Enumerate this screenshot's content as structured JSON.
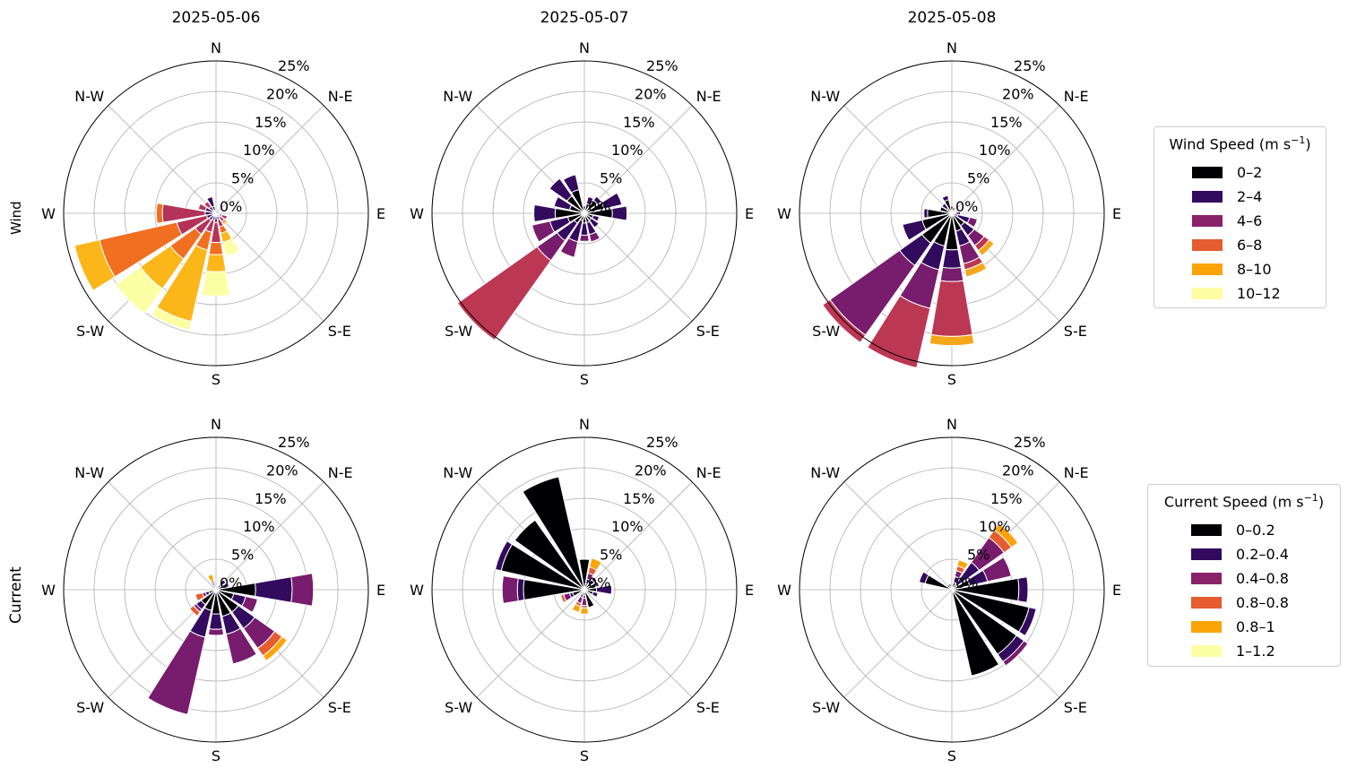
{
  "chart_data": {
    "type": "windrose",
    "panels_layout": "2 rows x 3 columns",
    "radial_ticks": [
      "0%",
      "5%",
      "10%",
      "15%",
      "20%",
      "25%"
    ],
    "rmax": 25,
    "direction_labels": [
      "N",
      "N-E",
      "E",
      "S-E",
      "S",
      "S-W",
      "W",
      "N-W"
    ],
    "sectors": 16,
    "grid": true,
    "columns": [
      "2025-05-06",
      "2025-05-07",
      "2025-05-08"
    ],
    "rows": [
      {
        "label": "Wind",
        "legend": {
          "title": "Wind Speed (m s",
          "title_sup": "−1",
          "title_end": ")",
          "bins": [
            "0–2",
            "2–4",
            "4–6",
            "6–8",
            "8–10",
            "10–12"
          ],
          "colors": [
            "#000004",
            "#320a5e",
            "#8a226a",
            "#e55c30",
            "#fba40a",
            "#fcffa4"
          ],
          "placement": "right"
        },
        "panels": [
          {
            "title": "2025-05-06",
            "colors": [
              "#000004",
              "#320a5e",
              "#b43359",
              "#f06f20",
              "#fbb61a",
              "#fcffa4"
            ],
            "sectors": [
              {
                "dir": 0,
                "stacks": []
              },
              {
                "dir": 22.5,
                "stacks": []
              },
              {
                "dir": 45,
                "stacks": []
              },
              {
                "dir": 67.5,
                "stacks": []
              },
              {
                "dir": 90,
                "stacks": []
              },
              {
                "dir": 112.5,
                "stacks": [
                  0.6,
                  0.4,
                  0.9
                ]
              },
              {
                "dir": 135,
                "stacks": [
                  0.4,
                  0.3,
                  1.0,
                  0.4,
                  0.3
                ]
              },
              {
                "dir": 157.5,
                "stacks": [
                  0.5,
                  0.6,
                  1.2,
                  1.1,
                  1.5,
                  2.3
                ]
              },
              {
                "dir": 180,
                "stacks": [
                  0.6,
                  0.9,
                  3.3,
                  2.0,
                  2.8,
                  4.0
                ]
              },
              {
                "dir": 202.5,
                "stacks": [
                  0.4,
                  0.8,
                  2.0,
                  3.0,
                  12.0,
                  1.5
                ]
              },
              {
                "dir": 225,
                "stacks": [
                  0.6,
                  0.8,
                  2.8,
                  5.0,
                  6.0,
                  5.0
                ]
              },
              {
                "dir": 247.5,
                "stacks": [
                  0.6,
                  1.0,
                  5.0,
                  13.0,
                  4.2
                ]
              },
              {
                "dir": 270,
                "stacks": [
                  0.5,
                  1.3,
                  7.0,
                  1.0
                ]
              },
              {
                "dir": 292.5,
                "stacks": [
                  0.5,
                  1.3,
                  1.2
                ]
              },
              {
                "dir": 315,
                "stacks": [
                  0.6,
                  0.8,
                  1.0
                ]
              },
              {
                "dir": 337.5,
                "stacks": [
                  1.2,
                  1.6
                ]
              }
            ]
          },
          {
            "title": "2025-05-07",
            "colors": [
              "#000004",
              "#320a5e",
              "#781c6d",
              "#bc3754",
              "#f4a71a",
              "#fcffa4"
            ],
            "sectors": [
              {
                "dir": 0,
                "stacks": [
                  1.2
                ]
              },
              {
                "dir": 22.5,
                "stacks": [
                  1.6,
                  1.2
                ]
              },
              {
                "dir": 45,
                "stacks": [
                  2.6,
                  0.8
                ]
              },
              {
                "dir": 67.5,
                "stacks": [
                  3.3,
                  3.0
                ]
              },
              {
                "dir": 90,
                "stacks": [
                  4.6,
                  2.4
                ]
              },
              {
                "dir": 112.5,
                "stacks": [
                  1.5,
                  1.0
                ]
              },
              {
                "dir": 135,
                "stacks": [
                  1.4,
                  1.5
                ]
              },
              {
                "dir": 157.5,
                "stacks": [
                  1.6,
                  2.0,
                  1.2
                ]
              },
              {
                "dir": 180,
                "stacks": [
                  1.6,
                  2.0,
                  1.0
                ]
              },
              {
                "dir": 202.5,
                "stacks": [
                  1.2,
                  3.6,
                  2.6
                ]
              },
              {
                "dir": 225,
                "stacks": [
                  2.0,
                  3.5,
                  4.0,
                  16.0
                ]
              },
              {
                "dir": 247.5,
                "stacks": [
                  2.8,
                  3.0,
                  3.0
                ]
              },
              {
                "dir": 270,
                "stacks": [
                  4.8,
                  3.5
                ]
              },
              {
                "dir": 292.5,
                "stacks": [
                  2.5,
                  2.6
                ]
              },
              {
                "dir": 315,
                "stacks": [
                  3.5,
                  3.5
                ]
              },
              {
                "dir": 337.5,
                "stacks": [
                  4.0,
                  2.5
                ]
              }
            ]
          },
          {
            "title": "2025-05-08",
            "colors": [
              "#000004",
              "#320a5e",
              "#781c6d",
              "#bc3754",
              "#f4a71a",
              "#fcffa4"
            ],
            "sectors": [
              {
                "dir": 0,
                "stacks": [
                  1.2
                ]
              },
              {
                "dir": 22.5,
                "stacks": [
                  1.0
                ]
              },
              {
                "dir": 45,
                "stacks": []
              },
              {
                "dir": 67.5,
                "stacks": []
              },
              {
                "dir": 90,
                "stacks": [
                  0.6,
                  0.8
                ]
              },
              {
                "dir": 112.5,
                "stacks": [
                  1.0,
                  2.0,
                  1.3
                ]
              },
              {
                "dir": 135,
                "stacks": [
                  2.5,
                  2.0,
                  2.0,
                  1.0,
                  1.0
                ]
              },
              {
                "dir": 157.5,
                "stacks": [
                  3.0,
                  2.5,
                  3.0,
                  1.0,
                  1.2
                ]
              },
              {
                "dir": 180,
                "stacks": [
                  6.0,
                  3.0,
                  2.2,
                  9.0,
                  1.5
                ]
              },
              {
                "dir": 202.5,
                "stacks": [
                  5.5,
                  4.0,
                  6.5,
                  10.0
                ]
              },
              {
                "dir": 225,
                "stacks": [
                  6.0,
                  4.5,
                  14.0,
                  1.5
                ]
              },
              {
                "dir": 247.5,
                "stacks": [
                  5.0,
                  3.3
                ]
              },
              {
                "dir": 270,
                "stacks": [
                  4.0,
                  0.6
                ]
              },
              {
                "dir": 292.5,
                "stacks": [
                  2.0
                ]
              },
              {
                "dir": 315,
                "stacks": [
                  1.0,
                  1.0
                ]
              },
              {
                "dir": 337.5,
                "stacks": [
                  2.3,
                  0.7
                ]
              }
            ]
          }
        ]
      },
      {
        "label": "Current",
        "legend": {
          "title": "Current Speed (m s",
          "title_sup": "−1",
          "title_end": ")",
          "bins": [
            "0–0.2",
            "0.2–0.4",
            "0.4–0.8",
            "0.8–0.8",
            "0.8–1",
            "1–1.2"
          ],
          "colors": [
            "#000004",
            "#320a5e",
            "#8a226a",
            "#e55c30",
            "#fba40a",
            "#fcffa4"
          ],
          "placement": "right"
        },
        "panels": [
          {
            "title": "2025-05-06",
            "colors": [
              "#000004",
              "#320a5e",
              "#781c6d",
              "#e55c30",
              "#fba40a",
              "#fcffa4"
            ],
            "sectors": [
              {
                "dir": 0,
                "stacks": []
              },
              {
                "dir": 22.5,
                "stacks": []
              },
              {
                "dir": 45,
                "stacks": [
                  1.0,
                  1.0
                ]
              },
              {
                "dir": 67.5,
                "stacks": [
                  1.2,
                  1.0
                ]
              },
              {
                "dir": 90,
                "stacks": [
                  6.5,
                  6.0,
                  3.5
                ]
              },
              {
                "dir": 112.5,
                "stacks": [
                  3.0,
                  2.0,
                  2.0
                ]
              },
              {
                "dir": 135,
                "stacks": [
                  4.5,
                  3.3,
                  4.0,
                  1.5,
                  1.0
                ]
              },
              {
                "dir": 157.5,
                "stacks": [
                  4.5,
                  3.0,
                  5.0
                ]
              },
              {
                "dir": 180,
                "stacks": [
                  4.0,
                  2.5,
                  1.0
                ]
              },
              {
                "dir": 202.5,
                "stacks": [
                  3.5,
                  4.5,
                  13.0
                ]
              },
              {
                "dir": 225,
                "stacks": [
                  3.0,
                  1.0,
                  0.5,
                  0.8
                ]
              },
              {
                "dir": 247.5,
                "stacks": [
                  1.2,
                  0.6,
                  0.5,
                  1.2
                ]
              },
              {
                "dir": 270,
                "stacks": []
              },
              {
                "dir": 292.5,
                "stacks": []
              },
              {
                "dir": 315,
                "stacks": [
                  0.8
                ]
              },
              {
                "dir": 337.5,
                "stacks": [
                  0.5,
                  0.3,
                  0.4,
                  0.4,
                  1.0
                ]
              }
            ]
          },
          {
            "title": "2025-05-07",
            "colors": [
              "#000004",
              "#320a5e",
              "#781c6d",
              "#e55c30",
              "#fba40a",
              "#fcffa4"
            ],
            "sectors": [
              {
                "dir": 0,
                "stacks": [
                  5.0
                ]
              },
              {
                "dir": 22.5,
                "stacks": [
                  1.0,
                  0.8,
                  1.0,
                  1.0,
                  1.5
                ]
              },
              {
                "dir": 45,
                "stacks": [
                  2.0,
                  0.5
                ]
              },
              {
                "dir": 67.5,
                "stacks": [
                  2.0,
                  0.5
                ]
              },
              {
                "dir": 90,
                "stacks": [
                  2.0,
                  2.5
                ]
              },
              {
                "dir": 112.5,
                "stacks": [
                  1.5,
                  0.8
                ]
              },
              {
                "dir": 135,
                "stacks": []
              },
              {
                "dir": 157.5,
                "stacks": [
                  3.0
                ]
              },
              {
                "dir": 180,
                "stacks": [
                  1.0,
                  0.4,
                  1.2,
                  0.4,
                  1.0
                ]
              },
              {
                "dir": 202.5,
                "stacks": [
                  0.8,
                  0.5,
                  1.0,
                  0.5,
                  1.0
                ]
              },
              {
                "dir": 225,
                "stacks": [
                  0.5,
                  0.3
                ]
              },
              {
                "dir": 247.5,
                "stacks": [
                  2.0,
                  0.5,
                  1.0,
                  0.5
                ]
              },
              {
                "dir": 270,
                "stacks": [
                  10.0,
                  1.0,
                  2.5
                ]
              },
              {
                "dir": 292.5,
                "stacks": [
                  14.0,
                  1.0
                ]
              },
              {
                "dir": 315,
                "stacks": [
                  14.0
                ]
              },
              {
                "dir": 337.5,
                "stacks": [
                  19.0
                ]
              }
            ]
          },
          {
            "title": "2025-05-08",
            "colors": [
              "#000004",
              "#320a5e",
              "#781c6d",
              "#e55c30",
              "#fba40a",
              "#fcffa4"
            ],
            "sectors": [
              {
                "dir": 0,
                "stacks": []
              },
              {
                "dir": 22.5,
                "stacks": [
                  1.2,
                  1.0,
                  1.0,
                  0.8,
                  1.0
                ]
              },
              {
                "dir": 45,
                "stacks": [
                  1.0,
                  4.5,
                  5.0,
                  1.5,
                  1.3
                ]
              },
              {
                "dir": 67.5,
                "stacks": [
                  3.0,
                  3.0,
                  4.0
                ]
              },
              {
                "dir": 90,
                "stacks": [
                  11.0,
                  1.5
                ]
              },
              {
                "dir": 112.5,
                "stacks": [
                  13.0,
                  1.2
                ]
              },
              {
                "dir": 135,
                "stacks": [
                  13.0,
                  1.5,
                  0.8
                ]
              },
              {
                "dir": 157.5,
                "stacks": [
                  14.5
                ]
              },
              {
                "dir": 180,
                "stacks": []
              },
              {
                "dir": 202.5,
                "stacks": []
              },
              {
                "dir": 225,
                "stacks": []
              },
              {
                "dir": 247.5,
                "stacks": []
              },
              {
                "dir": 270,
                "stacks": []
              },
              {
                "dir": 292.5,
                "stacks": [
                  4.5,
                  1.0
                ]
              },
              {
                "dir": 315,
                "stacks": [
                  1.0
                ]
              },
              {
                "dir": 337.5,
                "stacks": [
                  1.0
                ]
              }
            ]
          }
        ]
      }
    ]
  }
}
